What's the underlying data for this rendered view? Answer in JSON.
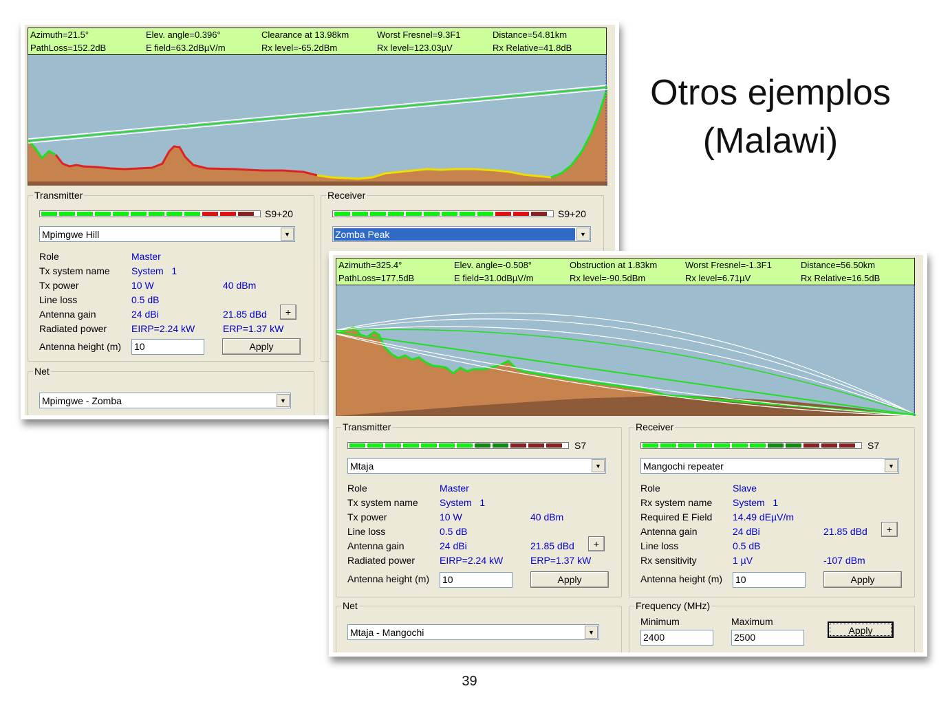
{
  "slide": {
    "title_line1": "Otros ejemplos",
    "title_line2": "(Malawi)",
    "page_number": "39"
  },
  "colors": {
    "info_bg": "#ccff99",
    "profile_sky": "#9dbccd",
    "terrain": "#c7834d",
    "los_line": "#22dd22",
    "window_bg": "#ece9d8"
  },
  "meter_colors": {
    "s920": [
      "#11ee11",
      "#11ee11",
      "#11ee11",
      "#11ee11",
      "#11ee11",
      "#11ee11",
      "#11ee11",
      "#11ee11",
      "#11ee11",
      "#dd1111",
      "#dd1111",
      "#882222"
    ],
    "s7": [
      "#11ee11",
      "#11ee11",
      "#11ee11",
      "#11ee11",
      "#11ee11",
      "#11ee11",
      "#11ee11",
      "#118811",
      "#118811",
      "#882222",
      "#882222",
      "#882222"
    ]
  },
  "link1": {
    "info_row1": [
      "Azimuth=21.5°",
      "Elev. angle=0.396°",
      "Clearance at 13.98km",
      "Worst Fresnel=9.3F1",
      "Distance=54.81km"
    ],
    "info_row2": [
      "PathLoss=152.2dB",
      "E field=63.2dBµV/m",
      "Rx level=-65.2dBm",
      "Rx level=123.03µV",
      "Rx Relative=41.8dB"
    ],
    "transmitter": {
      "legend": "Transmitter",
      "s_meter": "S9+20",
      "station": "Mpimgwe Hill",
      "role_label": "Role",
      "role": "Master",
      "system_label": "Tx system name",
      "system": "System   1",
      "power_label": "Tx power",
      "power_w": "10 W",
      "power_dbm": "40 dBm",
      "loss_label": "Line loss",
      "loss": "0.5 dB",
      "gain_label": "Antenna gain",
      "gain_dbi": "24 dBi",
      "gain_dbd": "21.85 dBd",
      "radiated_label": "Radiated power",
      "eirp": "EIRP=2.24 kW",
      "erp": "ERP=1.37 kW",
      "height_label": "Antenna height (m)",
      "height": "10",
      "apply": "Apply",
      "plus": "+"
    },
    "receiver": {
      "legend": "Receiver",
      "s_meter": "S9+20",
      "station": "Zomba Peak"
    },
    "net": {
      "legend": "Net",
      "value": "Mpimgwe - Zomba"
    }
  },
  "link2": {
    "info_row1": [
      "Azimuth=325.4°",
      "Elev. angle=-0.508°",
      "Obstruction at 1.83km",
      "Worst Fresnel=-1.3F1",
      "Distance=56.50km"
    ],
    "info_row2": [
      "PathLoss=177.5dB",
      "E field=31.0dBµV/m",
      "Rx level=-90.5dBm",
      "Rx level=6.71µV",
      "Rx Relative=16.5dB"
    ],
    "transmitter": {
      "legend": "Transmitter",
      "s_meter": "S7",
      "station": "Mtaja",
      "role_label": "Role",
      "role": "Master",
      "system_label": "Tx system name",
      "system": "System   1",
      "power_label": "Tx power",
      "power_w": "10 W",
      "power_dbm": "40 dBm",
      "loss_label": "Line loss",
      "loss": "0.5 dB",
      "gain_label": "Antenna gain",
      "gain_dbi": "24 dBi",
      "gain_dbd": "21.85 dBd",
      "radiated_label": "Radiated power",
      "eirp": "EIRP=2.24 kW",
      "erp": "ERP=1.37 kW",
      "height_label": "Antenna height (m)",
      "height": "10",
      "apply": "Apply",
      "plus": "+"
    },
    "receiver": {
      "legend": "Receiver",
      "s_meter": "S7",
      "station": "Mangochi repeater",
      "role_label": "Role",
      "role": "Slave",
      "system_label": "Rx system name",
      "system": "System   1",
      "field_label": "Required E Field",
      "field": "14.49 dEµV/m",
      "gain_label": "Antenna gain",
      "gain_dbi": "24 dBi",
      "gain_dbd": "21.85 dBd",
      "loss_label": "Line loss",
      "loss": "0.5 dB",
      "sens_label": "Rx sensitivity",
      "sens_uv": "1 µV",
      "sens_dbm": "-107 dBm",
      "height_label": "Antenna height (m)",
      "height": "10",
      "apply": "Apply",
      "plus": "+"
    },
    "net": {
      "legend": "Net",
      "value": "Mtaja - Mangochi"
    },
    "frequency": {
      "legend": "Frequency (MHz)",
      "min_label": "Minimum",
      "min": "2400",
      "max_label": "Maximum",
      "max": "2500",
      "apply": "Apply"
    }
  }
}
